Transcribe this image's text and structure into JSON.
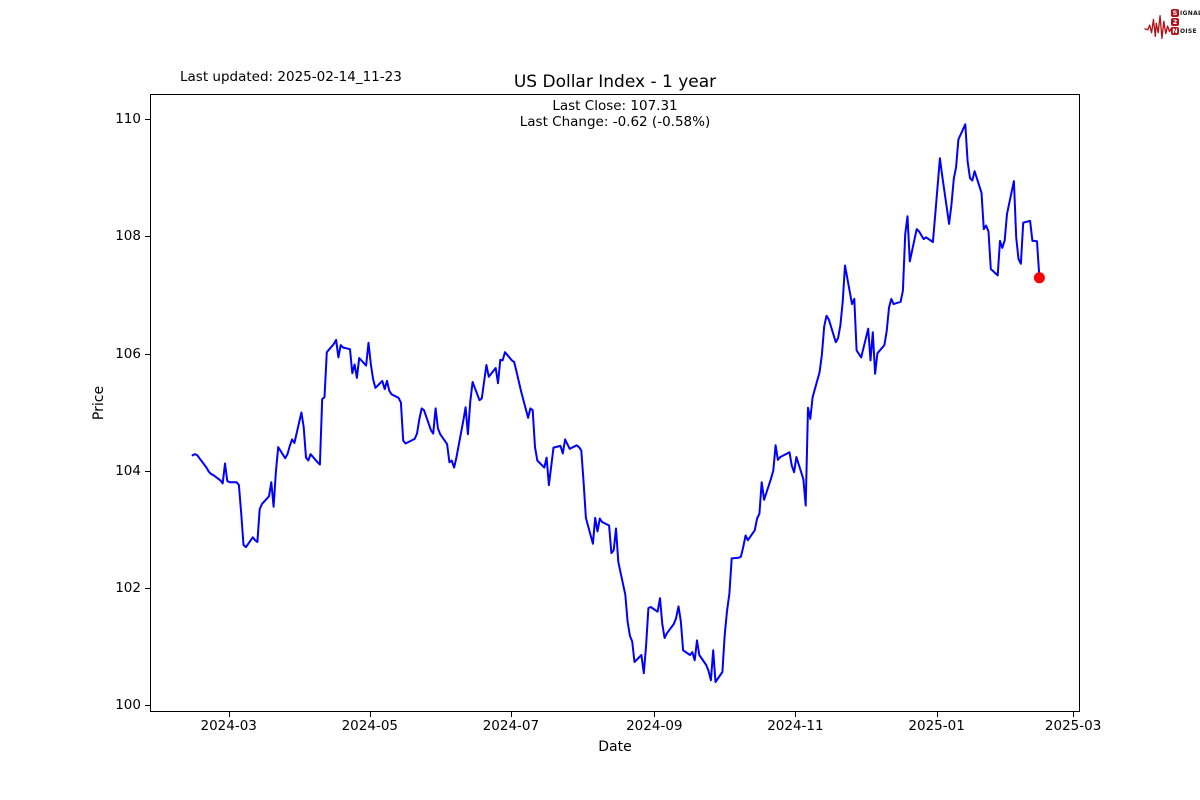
{
  "header": {
    "last_updated": "Last updated: 2025-02-14_11-23",
    "logo": {
      "accent_color": "#b01218",
      "row1_boxed": "S",
      "row1_rest": "IGNAL",
      "row2_boxed": "2",
      "row2_rest": "",
      "row3_boxed": "N",
      "row3_rest": "OISE"
    }
  },
  "chart_data": {
    "type": "line",
    "title": "US Dollar Index - 1 year",
    "subtitle_line1": "Last Close: 107.31",
    "subtitle_line2": "Last Change: -0.62 (-0.58%)",
    "xlabel": "Date",
    "ylabel": "Price",
    "legend": "none",
    "grid": false,
    "line_color": "#0000ff",
    "line_width": 2,
    "last_point_marker_color": "#ff0000",
    "ylim": [
      99.88,
      110.43
    ],
    "xlim_dates": [
      "2024-01-27",
      "2025-03-04"
    ],
    "yticks": [
      100,
      102,
      104,
      106,
      108,
      110
    ],
    "xticks": [
      {
        "date": "2024-03-01",
        "label": "2024-03"
      },
      {
        "date": "2024-05-01",
        "label": "2024-05"
      },
      {
        "date": "2024-07-01",
        "label": "2024-07"
      },
      {
        "date": "2024-09-01",
        "label": "2024-09"
      },
      {
        "date": "2024-11-01",
        "label": "2024-11"
      },
      {
        "date": "2025-01-01",
        "label": "2025-01"
      },
      {
        "date": "2025-03-01",
        "label": "2025-03"
      }
    ],
    "series": [
      {
        "name": "US Dollar Index",
        "points": [
          [
            "2024-02-14",
            104.28
          ],
          [
            "2024-02-15",
            104.3
          ],
          [
            "2024-02-16",
            104.28
          ],
          [
            "2024-02-20",
            104.07
          ],
          [
            "2024-02-21",
            104.0
          ],
          [
            "2024-02-22",
            103.96
          ],
          [
            "2024-02-23",
            103.94
          ],
          [
            "2024-02-26",
            103.85
          ],
          [
            "2024-02-27",
            103.8
          ],
          [
            "2024-02-28",
            104.14
          ],
          [
            "2024-02-29",
            103.84
          ],
          [
            "2024-03-01",
            103.82
          ],
          [
            "2024-03-04",
            103.82
          ],
          [
            "2024-03-05",
            103.77
          ],
          [
            "2024-03-06",
            103.29
          ],
          [
            "2024-03-07",
            102.75
          ],
          [
            "2024-03-08",
            102.71
          ],
          [
            "2024-03-11",
            102.88
          ],
          [
            "2024-03-12",
            102.83
          ],
          [
            "2024-03-13",
            102.8
          ],
          [
            "2024-03-14",
            103.36
          ],
          [
            "2024-03-15",
            103.45
          ],
          [
            "2024-03-18",
            103.58
          ],
          [
            "2024-03-19",
            103.82
          ],
          [
            "2024-03-20",
            103.4
          ],
          [
            "2024-03-21",
            104.0
          ],
          [
            "2024-03-22",
            104.42
          ],
          [
            "2024-03-25",
            104.23
          ],
          [
            "2024-03-26",
            104.3
          ],
          [
            "2024-03-27",
            104.44
          ],
          [
            "2024-03-28",
            104.55
          ],
          [
            "2024-03-29",
            104.49
          ],
          [
            "2024-04-01",
            105.01
          ],
          [
            "2024-04-02",
            104.76
          ],
          [
            "2024-04-03",
            104.24
          ],
          [
            "2024-04-04",
            104.19
          ],
          [
            "2024-04-05",
            104.3
          ],
          [
            "2024-04-08",
            104.16
          ],
          [
            "2024-04-09",
            104.12
          ],
          [
            "2024-04-10",
            105.24
          ],
          [
            "2024-04-11",
            105.27
          ],
          [
            "2024-04-12",
            106.04
          ],
          [
            "2024-04-15",
            106.18
          ],
          [
            "2024-04-16",
            106.25
          ],
          [
            "2024-04-17",
            105.95
          ],
          [
            "2024-04-18",
            106.16
          ],
          [
            "2024-04-19",
            106.12
          ],
          [
            "2024-04-22",
            106.09
          ],
          [
            "2024-04-23",
            105.68
          ],
          [
            "2024-04-24",
            105.83
          ],
          [
            "2024-04-25",
            105.6
          ],
          [
            "2024-04-26",
            105.94
          ],
          [
            "2024-04-29",
            105.81
          ],
          [
            "2024-04-30",
            106.2
          ],
          [
            "2024-05-01",
            105.84
          ],
          [
            "2024-05-02",
            105.58
          ],
          [
            "2024-05-03",
            105.43
          ],
          [
            "2024-05-06",
            105.55
          ],
          [
            "2024-05-07",
            105.41
          ],
          [
            "2024-05-08",
            105.55
          ],
          [
            "2024-05-09",
            105.38
          ],
          [
            "2024-05-10",
            105.32
          ],
          [
            "2024-05-13",
            105.26
          ],
          [
            "2024-05-14",
            105.18
          ],
          [
            "2024-05-15",
            104.53
          ],
          [
            "2024-05-16",
            104.48
          ],
          [
            "2024-05-17",
            104.5
          ],
          [
            "2024-05-20",
            104.56
          ],
          [
            "2024-05-21",
            104.65
          ],
          [
            "2024-05-22",
            104.9
          ],
          [
            "2024-05-23",
            105.08
          ],
          [
            "2024-05-24",
            105.05
          ],
          [
            "2024-05-27",
            104.71
          ],
          [
            "2024-05-28",
            104.65
          ],
          [
            "2024-05-29",
            105.08
          ],
          [
            "2024-05-30",
            104.74
          ],
          [
            "2024-05-31",
            104.64
          ],
          [
            "2024-06-03",
            104.47
          ],
          [
            "2024-06-04",
            104.16
          ],
          [
            "2024-06-05",
            104.19
          ],
          [
            "2024-06-06",
            104.07
          ],
          [
            "2024-06-07",
            104.24
          ],
          [
            "2024-06-10",
            104.87
          ],
          [
            "2024-06-11",
            105.1
          ],
          [
            "2024-06-12",
            104.64
          ],
          [
            "2024-06-13",
            105.2
          ],
          [
            "2024-06-14",
            105.53
          ],
          [
            "2024-06-17",
            105.22
          ],
          [
            "2024-06-18",
            105.25
          ],
          [
            "2024-06-20",
            105.82
          ],
          [
            "2024-06-21",
            105.62
          ],
          [
            "2024-06-24",
            105.77
          ],
          [
            "2024-06-25",
            105.51
          ],
          [
            "2024-06-26",
            105.91
          ],
          [
            "2024-06-27",
            105.9
          ],
          [
            "2024-06-28",
            106.04
          ],
          [
            "2024-07-01",
            105.9
          ],
          [
            "2024-07-02",
            105.87
          ],
          [
            "2024-07-03",
            105.71
          ],
          [
            "2024-07-05",
            105.37
          ],
          [
            "2024-07-08",
            104.92
          ],
          [
            "2024-07-09",
            105.08
          ],
          [
            "2024-07-10",
            105.05
          ],
          [
            "2024-07-11",
            104.42
          ],
          [
            "2024-07-12",
            104.19
          ],
          [
            "2024-07-15",
            104.07
          ],
          [
            "2024-07-16",
            104.24
          ],
          [
            "2024-07-17",
            103.77
          ],
          [
            "2024-07-19",
            104.41
          ],
          [
            "2024-07-22",
            104.44
          ],
          [
            "2024-07-23",
            104.31
          ],
          [
            "2024-07-24",
            104.55
          ],
          [
            "2024-07-26",
            104.39
          ],
          [
            "2024-07-29",
            104.45
          ],
          [
            "2024-07-30",
            104.42
          ],
          [
            "2024-07-31",
            104.36
          ],
          [
            "2024-08-01",
            103.82
          ],
          [
            "2024-08-02",
            103.21
          ],
          [
            "2024-08-05",
            102.77
          ],
          [
            "2024-08-06",
            103.21
          ],
          [
            "2024-08-07",
            102.98
          ],
          [
            "2024-08-08",
            103.2
          ],
          [
            "2024-08-09",
            103.14
          ],
          [
            "2024-08-12",
            103.08
          ],
          [
            "2024-08-13",
            102.61
          ],
          [
            "2024-08-14",
            102.66
          ],
          [
            "2024-08-15",
            103.03
          ],
          [
            "2024-08-16",
            102.46
          ],
          [
            "2024-08-19",
            101.9
          ],
          [
            "2024-08-20",
            101.44
          ],
          [
            "2024-08-21",
            101.2
          ],
          [
            "2024-08-22",
            101.1
          ],
          [
            "2024-08-23",
            100.75
          ],
          [
            "2024-08-26",
            100.87
          ],
          [
            "2024-08-27",
            100.56
          ],
          [
            "2024-08-28",
            101.03
          ],
          [
            "2024-08-29",
            101.67
          ],
          [
            "2024-08-30",
            101.69
          ],
          [
            "2024-09-02",
            101.61
          ],
          [
            "2024-09-03",
            101.84
          ],
          [
            "2024-09-04",
            101.4
          ],
          [
            "2024-09-05",
            101.16
          ],
          [
            "2024-09-06",
            101.24
          ],
          [
            "2024-09-09",
            101.4
          ],
          [
            "2024-09-10",
            101.5
          ],
          [
            "2024-09-11",
            101.7
          ],
          [
            "2024-09-12",
            101.45
          ],
          [
            "2024-09-13",
            100.95
          ],
          [
            "2024-09-16",
            100.87
          ],
          [
            "2024-09-17",
            100.92
          ],
          [
            "2024-09-18",
            100.78
          ],
          [
            "2024-09-19",
            101.12
          ],
          [
            "2024-09-20",
            100.87
          ],
          [
            "2024-09-23",
            100.7
          ],
          [
            "2024-09-24",
            100.6
          ],
          [
            "2024-09-25",
            100.44
          ],
          [
            "2024-09-26",
            100.95
          ],
          [
            "2024-09-27",
            100.41
          ],
          [
            "2024-09-30",
            100.58
          ],
          [
            "2024-10-01",
            101.21
          ],
          [
            "2024-10-02",
            101.62
          ],
          [
            "2024-10-03",
            101.92
          ],
          [
            "2024-10-04",
            102.52
          ],
          [
            "2024-10-07",
            102.53
          ],
          [
            "2024-10-08",
            102.55
          ],
          [
            "2024-10-09",
            102.71
          ],
          [
            "2024-10-10",
            102.91
          ],
          [
            "2024-10-11",
            102.83
          ],
          [
            "2024-10-14",
            103.0
          ],
          [
            "2024-10-15",
            103.2
          ],
          [
            "2024-10-16",
            103.28
          ],
          [
            "2024-10-17",
            103.82
          ],
          [
            "2024-10-18",
            103.52
          ],
          [
            "2024-10-21",
            103.88
          ],
          [
            "2024-10-22",
            104.02
          ],
          [
            "2024-10-23",
            104.45
          ],
          [
            "2024-10-24",
            104.2
          ],
          [
            "2024-10-25",
            104.25
          ],
          [
            "2024-10-28",
            104.31
          ],
          [
            "2024-10-29",
            104.33
          ],
          [
            "2024-10-30",
            104.1
          ],
          [
            "2024-10-31",
            103.99
          ],
          [
            "2024-11-01",
            104.25
          ],
          [
            "2024-11-04",
            103.87
          ],
          [
            "2024-11-05",
            103.42
          ],
          [
            "2024-11-06",
            105.09
          ],
          [
            "2024-11-07",
            104.9
          ],
          [
            "2024-11-08",
            105.27
          ],
          [
            "2024-11-11",
            105.7
          ],
          [
            "2024-11-12",
            106.0
          ],
          [
            "2024-11-13",
            106.48
          ],
          [
            "2024-11-14",
            106.66
          ],
          [
            "2024-11-15",
            106.6
          ],
          [
            "2024-11-18",
            106.21
          ],
          [
            "2024-11-19",
            106.28
          ],
          [
            "2024-11-20",
            106.5
          ],
          [
            "2024-11-21",
            106.9
          ],
          [
            "2024-11-22",
            107.52
          ],
          [
            "2024-11-25",
            106.86
          ],
          [
            "2024-11-26",
            106.95
          ],
          [
            "2024-11-27",
            106.07
          ],
          [
            "2024-11-29",
            105.95
          ],
          [
            "2024-12-02",
            106.44
          ],
          [
            "2024-12-03",
            105.9
          ],
          [
            "2024-12-04",
            106.38
          ],
          [
            "2024-12-05",
            105.67
          ],
          [
            "2024-12-06",
            106.02
          ],
          [
            "2024-12-09",
            106.16
          ],
          [
            "2024-12-10",
            106.4
          ],
          [
            "2024-12-11",
            106.8
          ],
          [
            "2024-12-12",
            106.95
          ],
          [
            "2024-12-13",
            106.86
          ],
          [
            "2024-12-16",
            106.9
          ],
          [
            "2024-12-17",
            107.09
          ],
          [
            "2024-12-18",
            108.05
          ],
          [
            "2024-12-19",
            108.36
          ],
          [
            "2024-12-20",
            107.59
          ],
          [
            "2024-12-23",
            108.14
          ],
          [
            "2024-12-24",
            108.1
          ],
          [
            "2024-12-26",
            107.97
          ],
          [
            "2024-12-27",
            108.0
          ],
          [
            "2024-12-30",
            107.92
          ],
          [
            "2024-12-31",
            108.4
          ],
          [
            "2025-01-02",
            109.35
          ],
          [
            "2025-01-03",
            109.05
          ],
          [
            "2025-01-06",
            108.23
          ],
          [
            "2025-01-07",
            108.55
          ],
          [
            "2025-01-08",
            109.0
          ],
          [
            "2025-01-09",
            109.2
          ],
          [
            "2025-01-10",
            109.67
          ],
          [
            "2025-01-13",
            109.93
          ],
          [
            "2025-01-14",
            109.3
          ],
          [
            "2025-01-15",
            109.01
          ],
          [
            "2025-01-16",
            108.97
          ],
          [
            "2025-01-17",
            109.13
          ],
          [
            "2025-01-20",
            108.76
          ],
          [
            "2025-01-21",
            108.14
          ],
          [
            "2025-01-22",
            108.2
          ],
          [
            "2025-01-23",
            108.1
          ],
          [
            "2025-01-24",
            107.46
          ],
          [
            "2025-01-27",
            107.35
          ],
          [
            "2025-01-28",
            107.94
          ],
          [
            "2025-01-29",
            107.82
          ],
          [
            "2025-01-30",
            107.95
          ],
          [
            "2025-01-31",
            108.4
          ],
          [
            "2025-02-03",
            108.96
          ],
          [
            "2025-02-04",
            108.0
          ],
          [
            "2025-02-05",
            107.63
          ],
          [
            "2025-02-06",
            107.55
          ],
          [
            "2025-02-07",
            108.25
          ],
          [
            "2025-02-10",
            108.28
          ],
          [
            "2025-02-11",
            107.94
          ],
          [
            "2025-02-12",
            107.94
          ],
          [
            "2025-02-13",
            107.93
          ],
          [
            "2025-02-14",
            107.31
          ]
        ]
      }
    ]
  }
}
